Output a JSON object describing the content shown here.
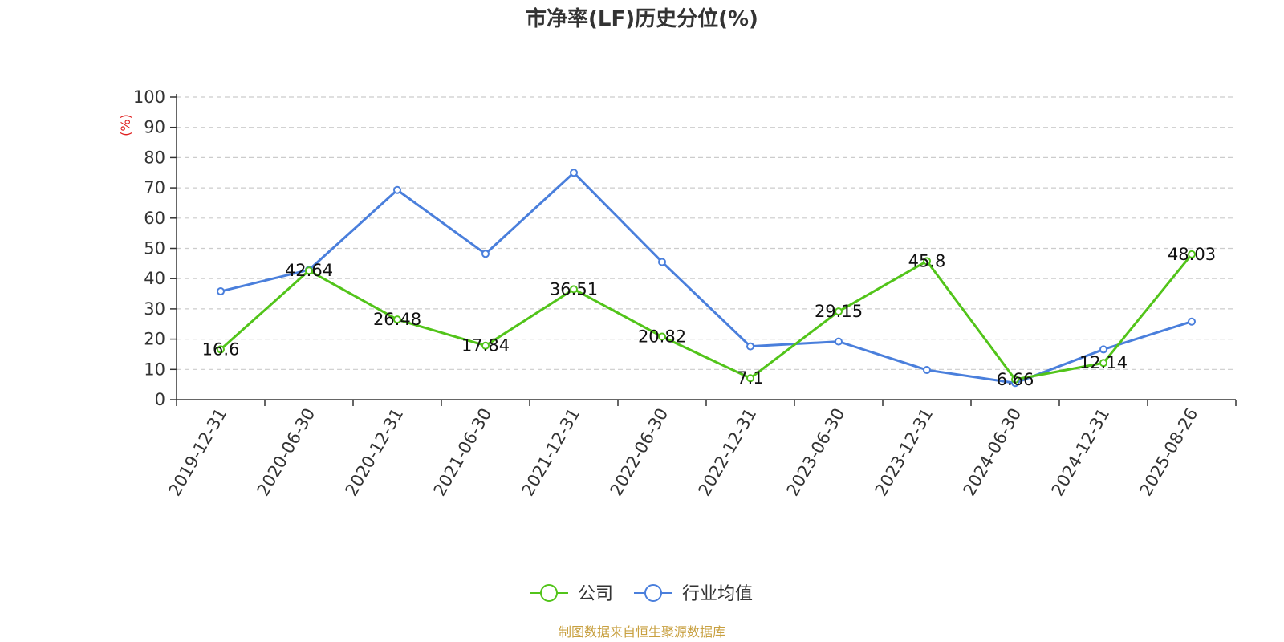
{
  "chart_data": {
    "type": "line",
    "title": "市净率(LF)历史分位(%)",
    "y_unit": "(%)",
    "ylim": [
      0,
      100
    ],
    "yticks": [
      0,
      10,
      20,
      30,
      40,
      50,
      60,
      70,
      80,
      90,
      100
    ],
    "grid": true,
    "legend_position": "bottom",
    "categories": [
      "2019-12-31",
      "2020-06-30",
      "2020-12-31",
      "2021-06-30",
      "2021-12-31",
      "2022-06-30",
      "2022-12-31",
      "2023-06-30",
      "2023-12-31",
      "2024-06-30",
      "2024-12-31",
      "2025-08-26"
    ],
    "series": [
      {
        "name": "公司",
        "color": "#52c41a",
        "values": [
          16.6,
          42.64,
          26.48,
          17.84,
          36.51,
          20.82,
          7.1,
          29.15,
          45.8,
          6.66,
          12.14,
          48.03
        ],
        "labels": [
          "16.6",
          "42.64",
          "26.48",
          "17.84",
          "36.51",
          "20.82",
          "7.1",
          "29.15",
          "45.8",
          "6.66",
          "12.14",
          "48.03"
        ]
      },
      {
        "name": "行业均值",
        "color": "#4a7fdc",
        "values": [
          35.8,
          42.9,
          69.3,
          48.2,
          75.0,
          45.5,
          17.6,
          19.2,
          9.8,
          5.5,
          16.6,
          25.8
        ]
      }
    ]
  },
  "source": "制图数据来自恒生聚源数据库",
  "colors": {
    "unit": "#e02020",
    "source": "#c8a040",
    "axis": "#333333",
    "grid": "#cccccc"
  }
}
